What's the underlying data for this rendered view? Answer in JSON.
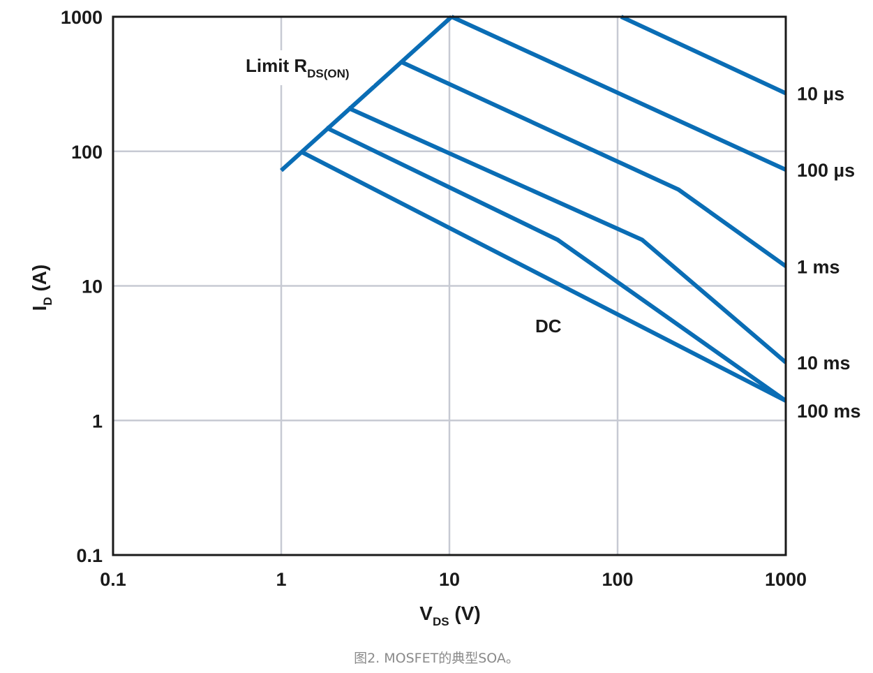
{
  "chart_data": {
    "type": "line",
    "xscale": "log",
    "yscale": "log",
    "xlim": [
      0.1,
      1000
    ],
    "ylim": [
      0.1,
      1000
    ],
    "xticks": [
      0.1,
      1,
      10,
      100,
      1000
    ],
    "yticks": [
      0.1,
      1,
      10,
      100,
      1000
    ],
    "xtick_labels": [
      "0.1",
      "1",
      "10",
      "100",
      "1000"
    ],
    "ytick_labels": [
      "0.1",
      "1",
      "10",
      "100",
      "1000"
    ],
    "xlabel": {
      "main": "V",
      "sub": "DS",
      "unit": " (V)"
    },
    "ylabel": {
      "main": "I",
      "sub": "D",
      "unit": " (A)"
    },
    "grid": true,
    "line_color": "#0a6db5",
    "grid_color": "#c7cad3",
    "series": [
      {
        "name": "10 µs",
        "points": [
          [
            105,
            1000
          ],
          [
            1000,
            270
          ]
        ]
      },
      {
        "name": "100 µs",
        "points": [
          [
            10.3,
            1000
          ],
          [
            1000,
            73
          ]
        ]
      },
      {
        "name": "1 ms",
        "points": [
          [
            5.2,
            460
          ],
          [
            230,
            52
          ],
          [
            1000,
            14
          ]
        ]
      },
      {
        "name": "10 ms",
        "points": [
          [
            2.5,
            210
          ],
          [
            140,
            22
          ],
          [
            1000,
            2.7
          ]
        ]
      },
      {
        "name": "100 ms",
        "points": [
          [
            1.85,
            150
          ],
          [
            44,
            22
          ],
          [
            1000,
            1.4
          ]
        ]
      },
      {
        "name": "DC",
        "points": [
          [
            1.3,
            100
          ],
          [
            1000,
            1.4
          ]
        ]
      },
      {
        "name": "Limit RDS(ON)",
        "points": [
          [
            1,
            72
          ],
          [
            10.3,
            1000
          ]
        ]
      }
    ],
    "annotations": {
      "limit": {
        "main": "Limit R",
        "sub": "DS(ON)"
      },
      "dc": "DC"
    }
  },
  "caption": "图2. MOSFET的典型SOA。"
}
